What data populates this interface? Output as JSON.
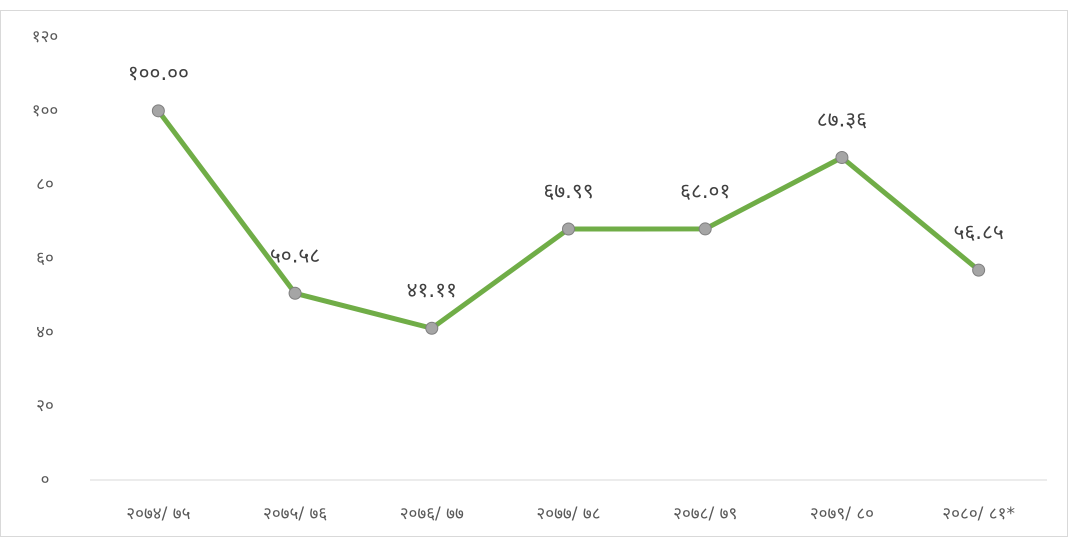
{
  "chart_data": {
    "type": "line",
    "categories": [
      "२०७४/ ७५",
      "२०७५/ ७६",
      "२०७६/ ७७",
      "२०७७/ ७८",
      "२०७८/ ७९",
      "२०७९/ ८०",
      "२०८०/ ८१*"
    ],
    "series": [
      {
        "color": "#70ad47",
        "values": [
          100.0,
          50.58,
          41.11,
          67.99,
          68.01,
          87.36,
          56.85
        ],
        "value_labels": [
          "१००.००",
          "५०.५८",
          "४१.११",
          "६७.९९",
          "६८.०१",
          "८७.३६",
          "५६.८५"
        ]
      }
    ],
    "ylim": [
      0,
      120
    ],
    "yticks": [
      {
        "value": 0,
        "label": "०"
      },
      {
        "value": 20,
        "label": "२०"
      },
      {
        "value": 40,
        "label": "४०"
      },
      {
        "value": 60,
        "label": "६०"
      },
      {
        "value": 80,
        "label": "८०"
      },
      {
        "value": 100,
        "label": "१००"
      },
      {
        "value": 120,
        "label": "१२०"
      }
    ],
    "grid": false
  }
}
